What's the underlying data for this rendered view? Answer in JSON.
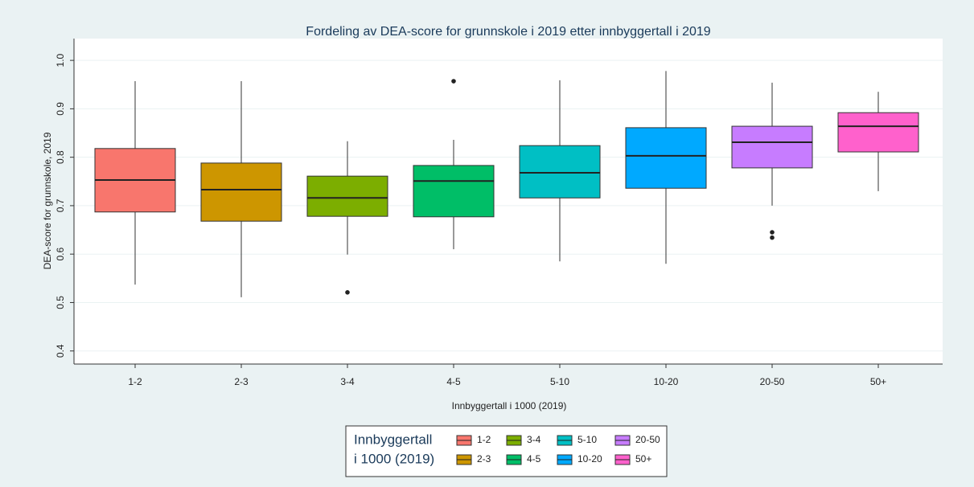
{
  "chart_data": {
    "type": "box",
    "title": "Fordeling av DEA-score for grunnskole i 2019 etter innbyggertall i 2019",
    "x_label": "Innbyggertall i 1000 (2019)",
    "y_label": "DEA-score for grunnskole, 2019",
    "legend_title": [
      "Innbyggertall",
      "i 1000 (2019)"
    ],
    "categories": [
      "1-2",
      "2-3",
      "3-4",
      "4-5",
      "5-10",
      "10-20",
      "20-50",
      "50+"
    ],
    "boxes": [
      {
        "color": "#f8766d",
        "whislo": 0.537,
        "q1": 0.687,
        "median": 0.753,
        "q3": 0.818,
        "whishi": 0.957,
        "outliers": []
      },
      {
        "color": "#cd9600",
        "whislo": 0.511,
        "q1": 0.668,
        "median": 0.733,
        "q3": 0.788,
        "whishi": 0.957,
        "outliers": []
      },
      {
        "color": "#7cae00",
        "whislo": 0.599,
        "q1": 0.678,
        "median": 0.716,
        "q3": 0.761,
        "whishi": 0.833,
        "outliers": [
          0.521
        ]
      },
      {
        "color": "#00be67",
        "whislo": 0.61,
        "q1": 0.677,
        "median": 0.751,
        "q3": 0.783,
        "whishi": 0.836,
        "outliers": [
          0.957
        ]
      },
      {
        "color": "#00bfc4",
        "whislo": 0.585,
        "q1": 0.716,
        "median": 0.768,
        "q3": 0.824,
        "whishi": 0.959,
        "outliers": []
      },
      {
        "color": "#00a9ff",
        "whislo": 0.58,
        "q1": 0.736,
        "median": 0.803,
        "q3": 0.861,
        "whishi": 0.978,
        "outliers": []
      },
      {
        "color": "#c77cff",
        "whislo": 0.7,
        "q1": 0.778,
        "median": 0.831,
        "q3": 0.864,
        "whishi": 0.954,
        "outliers": [
          0.645,
          0.634
        ]
      },
      {
        "color": "#ff61cc",
        "whislo": 0.73,
        "q1": 0.811,
        "median": 0.864,
        "q3": 0.892,
        "whishi": 0.935,
        "outliers": []
      }
    ],
    "ylim": [
      0.373,
      1.045
    ],
    "yticks": [
      0.4,
      0.5,
      0.6,
      0.7,
      0.8,
      0.9,
      {
        "value": 1,
        "label": "1.0"
      }
    ],
    "grid": true,
    "legend_position": "bottom"
  }
}
